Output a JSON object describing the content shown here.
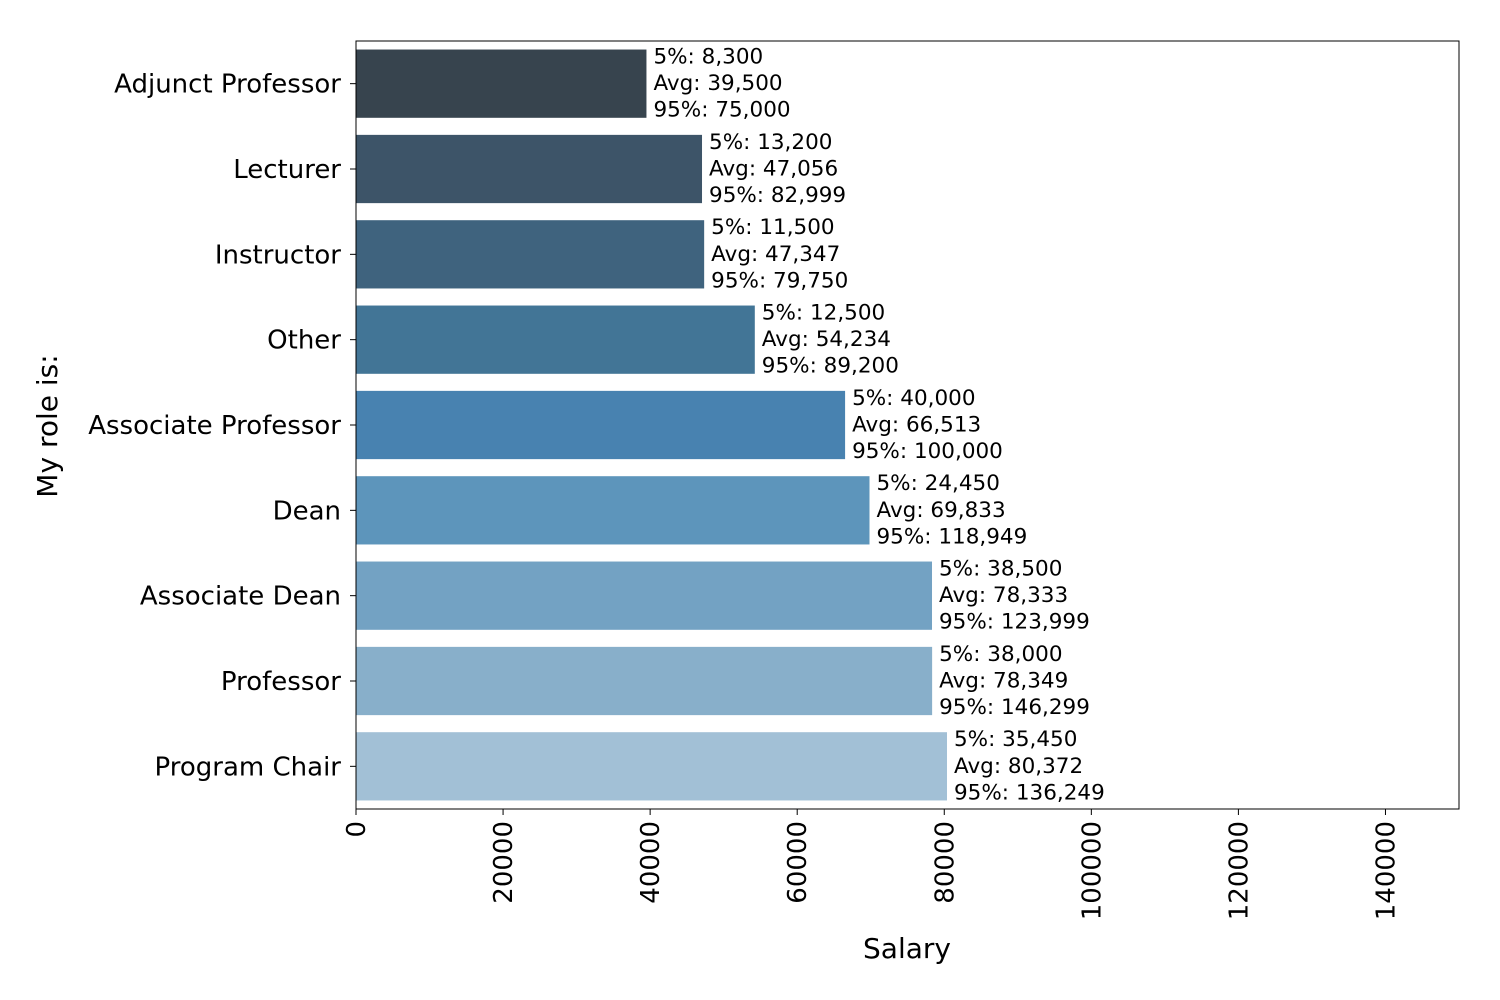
{
  "chart_data": {
    "type": "bar",
    "orientation": "horizontal",
    "xlabel": "Salary",
    "ylabel": "My role is:",
    "xlim": [
      0,
      150000
    ],
    "xticks": [
      0,
      20000,
      40000,
      60000,
      80000,
      100000,
      120000,
      140000
    ],
    "xtick_labels": [
      "0",
      "20000",
      "40000",
      "60000",
      "80000",
      "100000",
      "120000",
      "140000"
    ],
    "grid": false,
    "categories": [
      "Adjunct Professor",
      "Lecturer",
      "Instructor",
      "Other",
      "Associate Professor",
      "Dean",
      "Associate Dean",
      "Professor",
      "Program Chair"
    ],
    "values": [
      39500,
      47056,
      47347,
      54234,
      66513,
      69833,
      78333,
      78349,
      80372
    ],
    "colors": [
      "#37444e",
      "#3d5468",
      "#3f637e",
      "#427596",
      "#4882b0",
      "#5d95bb",
      "#73a2c3",
      "#88afca",
      "#a2c0d6"
    ],
    "annotations": [
      [
        "5%: 8,300",
        "Avg: 39,500",
        "95%: 75,000"
      ],
      [
        "5%: 13,200",
        "Avg: 47,056",
        "95%: 82,999"
      ],
      [
        "5%: 11,500",
        "Avg: 47,347",
        "95%: 79,750"
      ],
      [
        "5%: 12,500",
        "Avg: 54,234",
        "95%: 89,200"
      ],
      [
        "5%: 40,000",
        "Avg: 66,513",
        "95%: 100,000"
      ],
      [
        "5%: 24,450",
        "Avg: 69,833",
        "95%: 118,949"
      ],
      [
        "5%: 38,500",
        "Avg: 78,333",
        "95%: 123,999"
      ],
      [
        "5%: 38,000",
        "Avg: 78,349",
        "95%: 146,299"
      ],
      [
        "5%: 35,450",
        "Avg: 80,372",
        "95%: 136,249"
      ]
    ]
  }
}
